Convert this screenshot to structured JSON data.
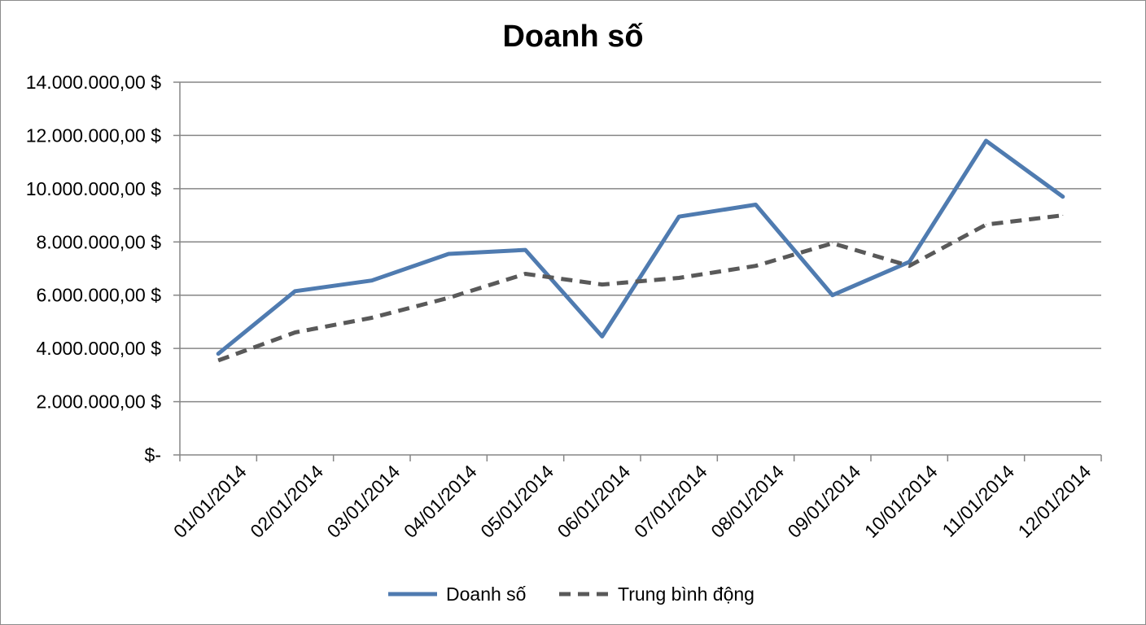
{
  "chart_data": {
    "type": "line",
    "title": "Doanh số",
    "categories": [
      "01/01/2014",
      "02/01/2014",
      "03/01/2014",
      "04/01/2014",
      "05/01/2014",
      "06/01/2014",
      "07/01/2014",
      "08/01/2014",
      "09/01/2014",
      "10/01/2014",
      "11/01/2014",
      "12/01/2014"
    ],
    "series": [
      {
        "name": "Doanh số",
        "values": [
          3800000,
          6150000,
          6550000,
          7550000,
          7700000,
          4450000,
          8950000,
          9400000,
          6000000,
          7250000,
          11800000,
          9700000
        ],
        "color": "#4f7bb0",
        "style": "solid"
      },
      {
        "name": "Trung bình động",
        "values": [
          3550000,
          4600000,
          5150000,
          5900000,
          6800000,
          6400000,
          6650000,
          7100000,
          7950000,
          7100000,
          8650000,
          9000000
        ],
        "color": "#595959",
        "style": "dashed"
      }
    ],
    "ylim": [
      0,
      14000000
    ],
    "yticks": [
      0,
      2000000,
      4000000,
      6000000,
      8000000,
      10000000,
      12000000,
      14000000
    ],
    "ytick_labels": [
      "$-",
      "2.000.000,00 $",
      "4.000.000,00 $",
      "6.000.000,00 $",
      "8.000.000,00 $",
      "10.000.000,00 $",
      "12.000.000,00 $",
      "14.000.000,00 $"
    ],
    "grid": true,
    "legend_position": "bottom"
  }
}
